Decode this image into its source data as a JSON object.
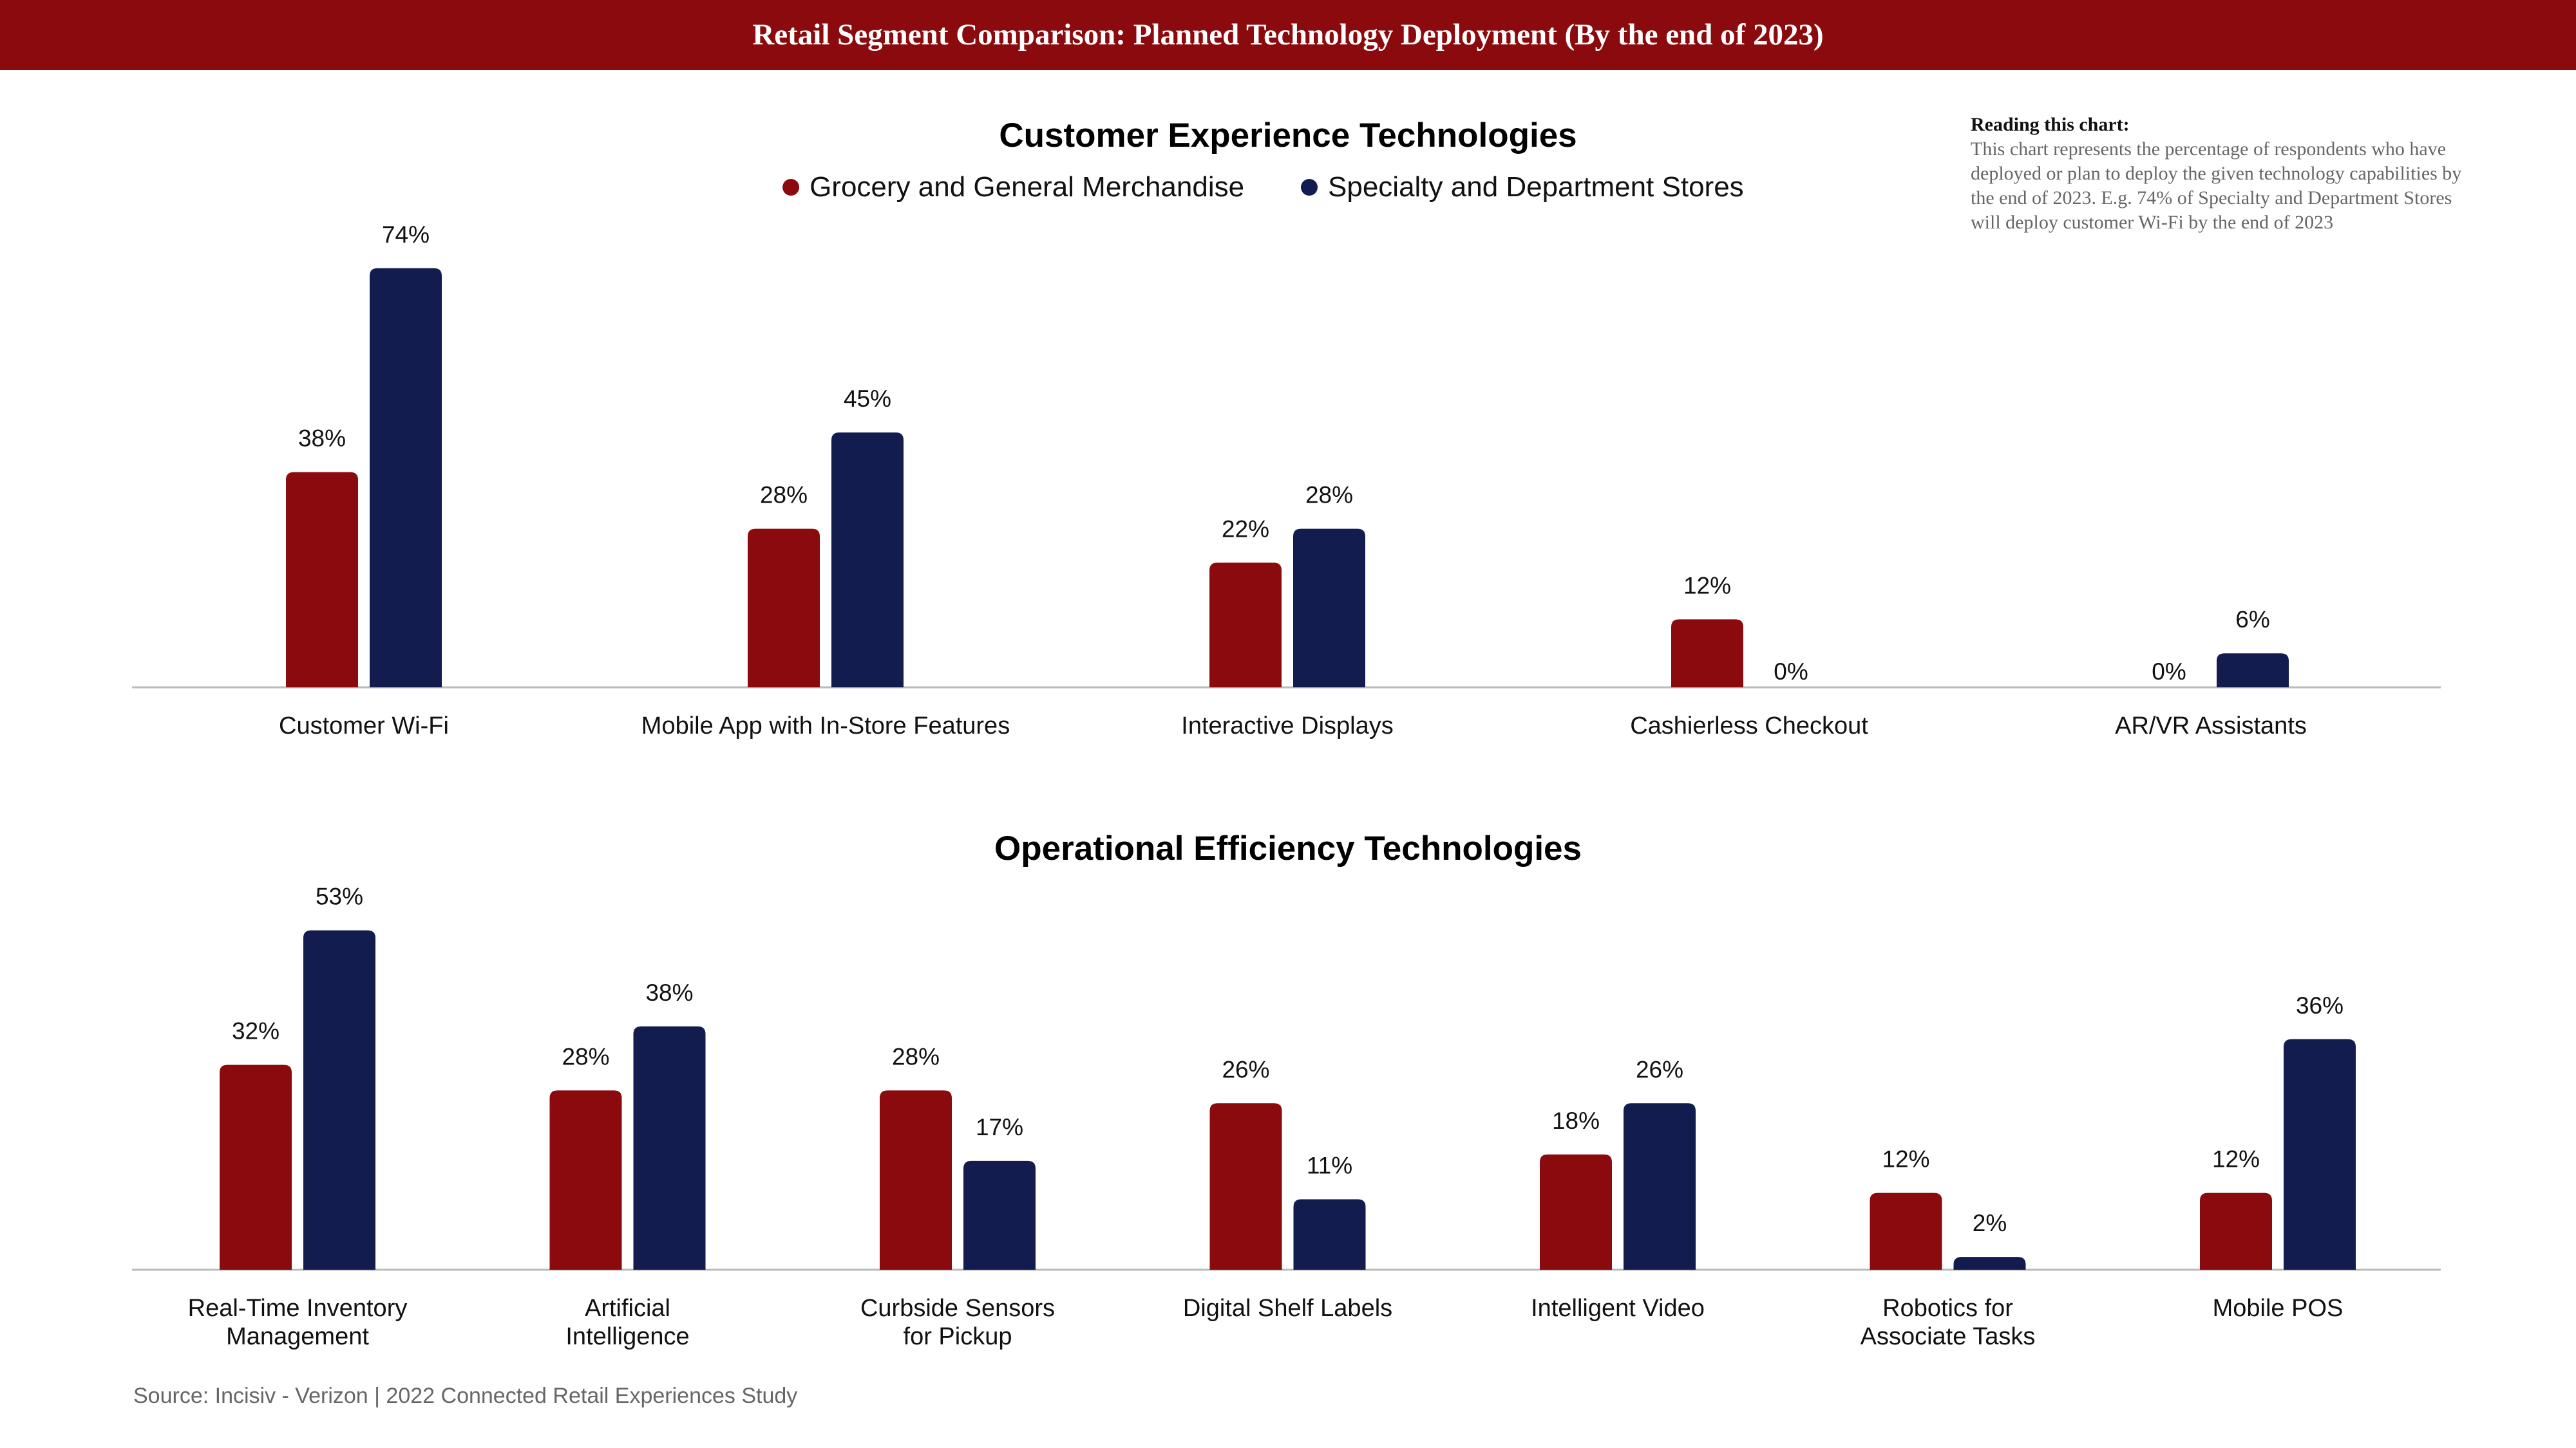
{
  "banner_title": "Retail Segment Comparison: Planned Technology Deployment (By the end of 2023)",
  "note": {
    "title": "Reading this chart:",
    "body": "This chart represents the percentage of respondents who have deployed or plan to deploy the given technology capabilities by the end of 2023. E.g. 74% of Specialty and Department Stores will deploy customer Wi-Fi by the end of 2023"
  },
  "source": "Source: Incisiv - Verizon | 2022 Connected Retail Experiences Study",
  "colors": {
    "banner": "#8B0A0D",
    "grocery": "#8B0A0D",
    "specialty": "#131C4F"
  },
  "chart_data": [
    {
      "type": "bar",
      "title": "Customer Experience Technologies",
      "categories": [
        "Customer Wi-Fi",
        "Mobile App with In-Store Features",
        "Interactive Displays",
        "Cashierless Checkout",
        "AR/VR Assistants"
      ],
      "series": [
        {
          "name": "Grocery and General Merchandise",
          "values": [
            38,
            28,
            22,
            12,
            0
          ],
          "color": "#8B0A0D"
        },
        {
          "name": "Specialty and Department Stores",
          "values": [
            74,
            45,
            28,
            0,
            6
          ],
          "color": "#131C4F"
        }
      ],
      "unit": "%",
      "legend": "top-center",
      "ylim": [
        0,
        80
      ],
      "grid": false
    },
    {
      "type": "bar",
      "title": "Operational Efficiency Technologies",
      "categories": [
        "Real-Time Inventory Management",
        "Artificial Intelligence",
        "Curbside Sensors for Pickup",
        "Digital Shelf Labels",
        "Intelligent Video",
        "Robotics for Associate Tasks",
        "Mobile POS"
      ],
      "series": [
        {
          "name": "Grocery and General Merchandise",
          "values": [
            32,
            28,
            28,
            26,
            18,
            12,
            12
          ],
          "color": "#8B0A0D"
        },
        {
          "name": "Specialty and Department Stores",
          "values": [
            53,
            38,
            17,
            11,
            26,
            2,
            36
          ],
          "color": "#131C4F"
        }
      ],
      "unit": "%",
      "ylim": [
        0,
        60
      ],
      "grid": false
    }
  ]
}
